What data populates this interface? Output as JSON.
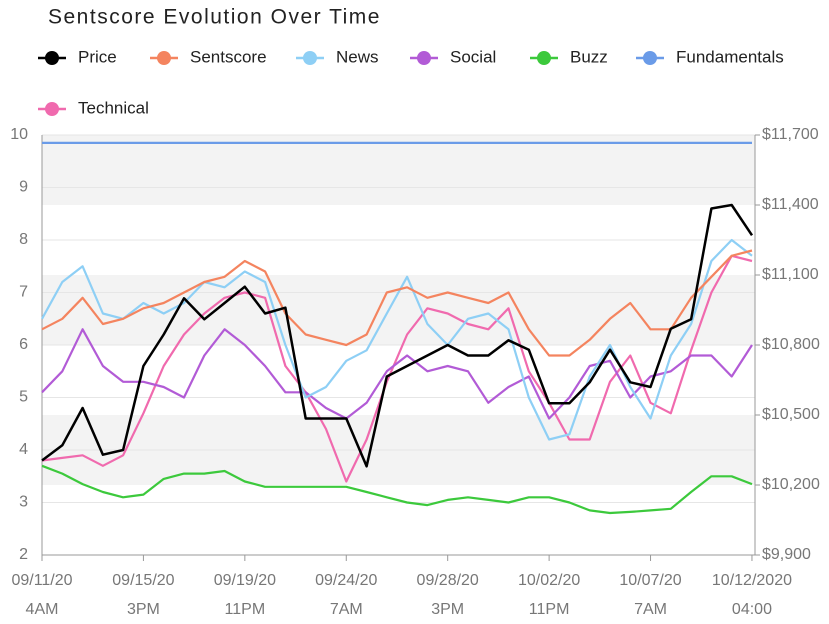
{
  "chart_data": {
    "type": "line",
    "title": "Sentscore Evolution Over Time",
    "x": [
      0,
      0.2,
      0.4,
      0.6,
      0.8,
      1,
      1.2,
      1.4,
      1.6,
      1.8,
      2,
      2.2,
      2.4,
      2.6,
      2.8,
      3,
      3.2,
      3.4,
      3.6,
      3.8,
      4,
      4.2,
      4.4,
      4.6,
      4.8,
      5,
      5.2,
      5.4,
      5.6,
      5.8,
      6,
      6.2,
      6.4,
      6.6,
      6.8,
      7
    ],
    "xlim": [
      0,
      7.03
    ],
    "xticks": [
      {
        "value": 0,
        "label": [
          "09/11/20",
          "4AM"
        ]
      },
      {
        "value": 1,
        "label": [
          "09/15/20",
          "3PM"
        ]
      },
      {
        "value": 2,
        "label": [
          "09/19/20",
          "11PM"
        ]
      },
      {
        "value": 3,
        "label": [
          "09/24/20",
          "7AM"
        ]
      },
      {
        "value": 4,
        "label": [
          "09/28/20",
          "3PM"
        ]
      },
      {
        "value": 5,
        "label": [
          "10/02/20",
          "11PM"
        ]
      },
      {
        "value": 6,
        "label": [
          "10/07/20",
          "7AM"
        ]
      },
      {
        "value": 7,
        "label": [
          "10/12/2020",
          "04:00"
        ]
      }
    ],
    "ylim": [
      2,
      10
    ],
    "yticks": [
      2,
      3,
      4,
      5,
      6,
      7,
      8,
      9,
      10
    ],
    "y2lim": [
      9900,
      11700
    ],
    "y2ticks": [
      {
        "value": 9900,
        "label": "$9,900"
      },
      {
        "value": 10200,
        "label": "$10,200"
      },
      {
        "value": 10500,
        "label": "$10,500"
      },
      {
        "value": 10800,
        "label": "$10,800"
      },
      {
        "value": 11100,
        "label": "$11,100"
      },
      {
        "value": 11400,
        "label": "$11,400"
      },
      {
        "value": 11700,
        "label": "$11,700"
      }
    ],
    "grid": true,
    "series": [
      {
        "name": "Price",
        "color": "#000000",
        "axis": "y2",
        "values": [
          10305,
          10370,
          10530,
          10330,
          10350,
          10710,
          10845,
          11000,
          10910,
          10980,
          11050,
          10935,
          10960,
          10485,
          10485,
          10485,
          10280,
          10665,
          10710,
          10755,
          10800,
          10755,
          10755,
          10820,
          10780,
          10550,
          10550,
          10640,
          10780,
          10640,
          10620,
          10870,
          10910,
          11385,
          11400,
          11270
        ]
      },
      {
        "name": "Sentscore",
        "color": "#f4845f",
        "values": [
          6.3,
          6.5,
          6.9,
          6.4,
          6.5,
          6.7,
          6.8,
          7.0,
          7.2,
          7.3,
          7.6,
          7.4,
          6.6,
          6.2,
          6.1,
          6.0,
          6.2,
          7.0,
          7.1,
          6.9,
          7.0,
          6.9,
          6.8,
          7.0,
          6.3,
          5.8,
          5.8,
          6.1,
          6.5,
          6.8,
          6.3,
          6.3,
          6.9,
          7.3,
          7.7,
          7.8
        ]
      },
      {
        "name": "News",
        "color": "#8ecff5",
        "values": [
          6.5,
          7.2,
          7.5,
          6.6,
          6.5,
          6.8,
          6.6,
          6.8,
          7.2,
          7.1,
          7.4,
          7.2,
          6.0,
          5.0,
          5.2,
          5.7,
          5.9,
          6.6,
          7.3,
          6.4,
          6.0,
          6.5,
          6.6,
          6.3,
          5.0,
          4.2,
          4.3,
          5.4,
          6.0,
          5.2,
          4.6,
          5.8,
          6.4,
          7.6,
          8.0,
          7.7
        ]
      },
      {
        "name": "Social",
        "color": "#b25bd6",
        "values": [
          5.1,
          5.5,
          6.3,
          5.6,
          5.3,
          5.3,
          5.2,
          5.0,
          5.8,
          6.3,
          6.0,
          5.6,
          5.1,
          5.1,
          4.8,
          4.6,
          4.9,
          5.5,
          5.8,
          5.5,
          5.6,
          5.5,
          4.9,
          5.2,
          5.4,
          4.6,
          5.0,
          5.6,
          5.7,
          5.0,
          5.4,
          5.5,
          5.8,
          5.8,
          5.4,
          6.0
        ]
      },
      {
        "name": "Buzz",
        "color": "#3cc93c",
        "values": [
          3.7,
          3.55,
          3.35,
          3.2,
          3.1,
          3.15,
          3.45,
          3.55,
          3.55,
          3.6,
          3.4,
          3.3,
          3.3,
          3.3,
          3.3,
          3.3,
          3.2,
          3.1,
          3.0,
          2.95,
          3.05,
          3.1,
          3.05,
          3.0,
          3.1,
          3.1,
          3.0,
          2.85,
          2.8,
          2.82,
          2.85,
          2.88,
          3.2,
          3.5,
          3.5,
          3.35
        ]
      },
      {
        "name": "Fundamentals",
        "color": "#6a9be8",
        "values": [
          9.85,
          9.85,
          9.85,
          9.85,
          9.85,
          9.85,
          9.85,
          9.85,
          9.85,
          9.85,
          9.85,
          9.85,
          9.85,
          9.85,
          9.85,
          9.85,
          9.85,
          9.85,
          9.85,
          9.85,
          9.85,
          9.85,
          9.85,
          9.85,
          9.85,
          9.85,
          9.85,
          9.85,
          9.85,
          9.85,
          9.85,
          9.85,
          9.85,
          9.85,
          9.85,
          9.85
        ]
      },
      {
        "name": "Technical",
        "color": "#f06aae",
        "values": [
          3.8,
          3.85,
          3.9,
          3.7,
          3.9,
          4.7,
          5.6,
          6.2,
          6.6,
          6.9,
          7.0,
          6.9,
          5.6,
          5.1,
          4.4,
          3.4,
          4.2,
          5.3,
          6.2,
          6.7,
          6.6,
          6.4,
          6.3,
          6.7,
          5.5,
          4.9,
          4.2,
          4.2,
          5.3,
          5.8,
          4.9,
          4.7,
          5.9,
          7.0,
          7.7,
          7.6
        ]
      }
    ]
  }
}
